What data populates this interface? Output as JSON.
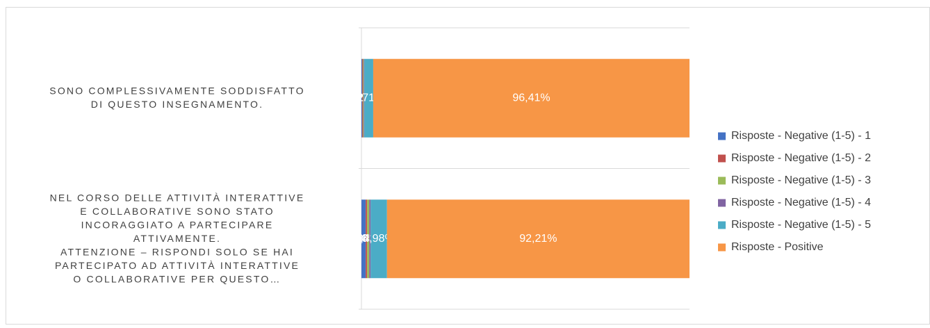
{
  "chart_data": {
    "type": "stacked-bar-horizontal-100",
    "categories": [
      "SONO COMPLESSIVAMENTE SODDISFATTO\nDI QUESTO INSEGNAMENTO.",
      "NEL CORSO DELLE ATTIVITÀ INTERATTIVE\nE COLLABORATIVE SONO STATO\nINCORAGGIATO A PARTECIPARE\nATTIVAMENTE.\nATTENZIONE – RISPONDI SOLO SE HAI\nPARTECIPATO AD ATTIVITÀ INTERATTIVE\nO COLLABORATIVE PER QUESTO…"
    ],
    "series": [
      {
        "name": "Risposte - Negative (1-5) - 1",
        "color": "#4472c4",
        "values": [
          0.22,
          1.3
        ],
        "value_labels": [
          "0,22%",
          "1,30%"
        ]
      },
      {
        "name": "Risposte - Negative (1-5) - 2",
        "color": "#c0504d",
        "values": [
          0.22,
          0.43
        ],
        "value_labels": [
          "0,22%",
          "0,43%"
        ]
      },
      {
        "name": "Risposte - Negative (1-5) - 3",
        "color": "#9bbb59",
        "values": [
          0.22,
          0.65
        ],
        "value_labels": [
          "0,22%",
          "0,65%"
        ]
      },
      {
        "name": "Risposte - Negative (1-5) - 4",
        "color": "#8064a2",
        "values": [
          0.22,
          0.43
        ],
        "value_labels": [
          "0,22%",
          "0,43%"
        ]
      },
      {
        "name": "Risposte - Negative (1-5) - 5",
        "color": "#4bacc6",
        "values": [
          2.71,
          4.98
        ],
        "value_labels": [
          "2,71%",
          "4,98%"
        ]
      },
      {
        "name": "Risposte - Positive",
        "color": "#f79646",
        "values": [
          96.41,
          92.21
        ],
        "value_labels": [
          "96,41%",
          "92,21%"
        ]
      }
    ],
    "xlim": [
      0,
      100
    ]
  }
}
